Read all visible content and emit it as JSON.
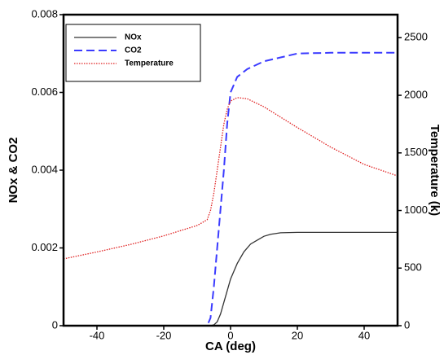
{
  "chart_data": {
    "type": "line",
    "xlabel": "CA (deg)",
    "ylabel": "NOx & CO2",
    "y2label": "Temperature (k)",
    "xlim": [
      -50,
      50
    ],
    "xticks": [
      -40,
      -20,
      0,
      20,
      40
    ],
    "ylim": [
      0,
      0.008
    ],
    "yticks": [
      0,
      0.002,
      0.004,
      0.006,
      0.008
    ],
    "y2lim": [
      0,
      2700
    ],
    "y2ticks": [
      0,
      500,
      1000,
      1500,
      2000,
      2500
    ],
    "legend": "upper left",
    "series": [
      {
        "name": "NOx",
        "color": "#333333",
        "dash": "solid",
        "x": [
          -50,
          -6,
          -5,
          -4,
          -3,
          -2,
          -1,
          0,
          1,
          2,
          4,
          6,
          8,
          10,
          12,
          15,
          20,
          30,
          40,
          50
        ],
        "values": [
          0,
          0,
          2e-05,
          0.0001,
          0.0003,
          0.0006,
          0.0009,
          0.0012,
          0.0014,
          0.0016,
          0.0019,
          0.0021,
          0.0022,
          0.0023,
          0.00235,
          0.00239,
          0.0024,
          0.0024,
          0.0024,
          0.0024
        ]
      },
      {
        "name": "CO2",
        "color": "#3b3bff",
        "dash": "dashed",
        "x": [
          -50,
          -7,
          -6,
          -5,
          -4,
          -3,
          -2,
          -1,
          0,
          2,
          5,
          10,
          15,
          20,
          30,
          40,
          50
        ],
        "values": [
          0,
          0,
          0.0002,
          0.001,
          0.002,
          0.003,
          0.004,
          0.0052,
          0.006,
          0.0064,
          0.0066,
          0.0068,
          0.0069,
          0.007,
          0.00702,
          0.00702,
          0.00702
        ]
      },
      {
        "name": "Temperature",
        "color": "#e02020",
        "dash": "dotted",
        "axis": "y2",
        "x": [
          -50,
          -40,
          -30,
          -20,
          -10,
          -7,
          -6,
          -5,
          -4,
          -3,
          -2,
          -1,
          0,
          2,
          5,
          10,
          20,
          30,
          40,
          50
        ],
        "values": [
          580,
          640,
          705,
          780,
          870,
          920,
          1000,
          1150,
          1350,
          1550,
          1750,
          1880,
          1950,
          1980,
          1970,
          1900,
          1720,
          1550,
          1400,
          1300
        ]
      }
    ]
  }
}
